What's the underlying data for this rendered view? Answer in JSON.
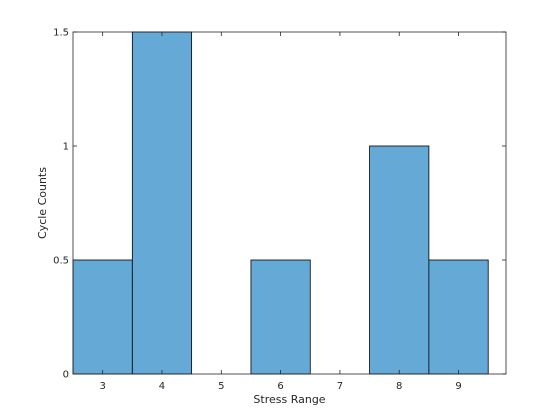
{
  "chart_data": {
    "type": "bar",
    "title": "",
    "xlabel": "Stress Range",
    "ylabel": "Cycle Counts",
    "x": [
      3,
      4,
      6,
      8,
      9
    ],
    "values": [
      0.5,
      1.5,
      0.5,
      1.0,
      0.5
    ],
    "bin_width": 1,
    "xlim": [
      2.5,
      9.8
    ],
    "ylim": [
      0,
      1.5
    ],
    "xticks": [
      3,
      4,
      5,
      6,
      7,
      8,
      9
    ],
    "yticks": [
      0,
      0.5,
      1,
      1.5
    ],
    "xtick_labels": [
      "3",
      "4",
      "5",
      "6",
      "7",
      "8",
      "9"
    ],
    "ytick_labels": [
      "0",
      "0.5",
      "1",
      "1.5"
    ],
    "grid": false,
    "bar_color": "#65a9d7"
  }
}
